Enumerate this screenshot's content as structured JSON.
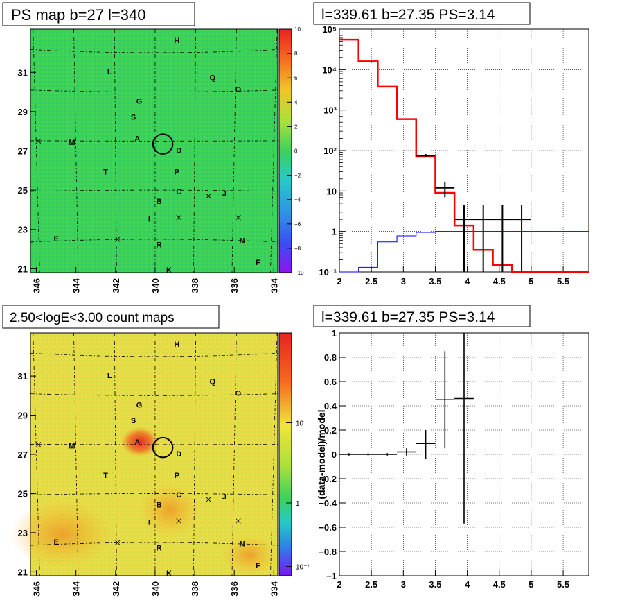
{
  "panels": {
    "tl": {
      "title": "PS map b=27 l=340"
    },
    "tr": {
      "title": "l=339.61 b=27.35 PS=3.14"
    },
    "bl": {
      "title": "2.50<logE<3.00 count maps"
    },
    "br": {
      "title": "l=339.61 b=27.35 PS=3.14"
    }
  },
  "colors": {
    "model_red": "#ff0000",
    "bkg_blue": "#0000ff",
    "data_black": "#000000",
    "ps_map_bg": "#3cd25a",
    "count_map_bg": "#e8e44a",
    "hotspot_red": "#e8281e"
  },
  "sky_map": {
    "l_ticks": [
      "346",
      "344",
      "342",
      "340",
      "338",
      "336",
      "334"
    ],
    "b_ticks": [
      "31",
      "29",
      "27",
      "25",
      "23",
      "21"
    ],
    "sources": [
      {
        "label": "H",
        "l": 338.9,
        "b": 32.6
      },
      {
        "label": "L",
        "l": 342.3,
        "b": 31.0
      },
      {
        "label": "Q",
        "l": 337.1,
        "b": 30.7
      },
      {
        "label": "O",
        "l": 335.8,
        "b": 30.1
      },
      {
        "label": "G",
        "l": 340.8,
        "b": 29.5
      },
      {
        "label": "S",
        "l": 341.1,
        "b": 28.7
      },
      {
        "label": "A",
        "l": 340.9,
        "b": 27.6
      },
      {
        "label": "M",
        "l": 344.2,
        "b": 27.4
      },
      {
        "label": "D",
        "l": 338.8,
        "b": 27.0
      },
      {
        "label": "T",
        "l": 342.5,
        "b": 25.9
      },
      {
        "label": "P",
        "l": 338.9,
        "b": 25.9
      },
      {
        "label": "C",
        "l": 338.8,
        "b": 24.9
      },
      {
        "label": "J",
        "l": 336.5,
        "b": 24.8
      },
      {
        "label": "B",
        "l": 339.8,
        "b": 24.4
      },
      {
        "label": "I",
        "l": 340.3,
        "b": 23.5
      },
      {
        "label": "E",
        "l": 345.0,
        "b": 22.5
      },
      {
        "label": "R",
        "l": 339.8,
        "b": 22.2
      },
      {
        "label": "N",
        "l": 335.6,
        "b": 22.4
      },
      {
        "label": "F",
        "l": 334.8,
        "b": 21.3
      },
      {
        "label": "K",
        "l": 339.3,
        "b": 20.9
      }
    ],
    "crosses": [
      {
        "l": 345.9,
        "b": 27.5
      },
      {
        "l": 337.3,
        "b": 24.7
      },
      {
        "l": 335.8,
        "b": 23.6
      },
      {
        "l": 338.8,
        "b": 23.6
      },
      {
        "l": 341.9,
        "b": 22.5
      }
    ],
    "circle": {
      "l": 339.61,
      "b": 27.35,
      "r_deg": 0.5
    }
  },
  "ps_colorbar": {
    "ticks": [
      "10",
      "8",
      "6",
      "4",
      "2",
      "0",
      "−2",
      "−4",
      "−6",
      "−8",
      "−10"
    ]
  },
  "count_colorbar": {
    "ticks": [
      "10",
      "1",
      "10⁻¹"
    ]
  },
  "chart_data": [
    {
      "type": "line",
      "title": "l=339.61 b=27.35 PS=3.14",
      "x_ticks": [
        "2",
        "2.5",
        "3",
        "3.5",
        "4",
        "4.5",
        "5",
        "5.5"
      ],
      "y_ticks": [
        "10⁻¹",
        "1",
        "10",
        "10²",
        "10³",
        "10⁴",
        "10⁵"
      ],
      "xlim": [
        2.0,
        5.9
      ],
      "ylim": [
        0.1,
        100000
      ],
      "yscale": "log",
      "grid": true,
      "series": [
        {
          "step_edges": [
            2.0,
            2.3,
            2.6,
            2.9,
            3.2,
            3.5,
            3.8,
            4.1,
            4.4,
            4.7,
            5.0,
            5.9
          ],
          "values": [
            55000,
            16000,
            3800,
            600,
            70,
            9,
            1.4,
            0.35,
            0.15,
            0.1,
            0.1
          ],
          "color": "#ff0000"
        },
        {
          "step_edges": [
            2.0,
            2.3,
            2.6,
            2.9,
            3.2,
            3.5,
            3.8,
            5.9
          ],
          "values": [
            0.1,
            0.13,
            0.55,
            0.78,
            0.95,
            1.0,
            1.0
          ],
          "color": "#0000ff"
        },
        {
          "type": "errorbar",
          "x": [
            3.35,
            3.65,
            3.95,
            4.25,
            4.55,
            4.85
          ],
          "xerr": [
            0.15,
            0.15,
            0.15,
            0.15,
            0.15,
            0.15
          ],
          "y": [
            75,
            12,
            2,
            2,
            2,
            2
          ],
          "ylo": [
            68,
            7,
            0.1,
            0.1,
            0.1,
            0.1
          ],
          "yhi": [
            82,
            17,
            4.5,
            4.5,
            4.5,
            4.5
          ],
          "color": "#000000"
        }
      ]
    },
    {
      "type": "scatter",
      "title": "l=339.61 b=27.35 PS=3.14",
      "ylabel": "(data-model)/model",
      "x_ticks": [
        "2",
        "2.5",
        "3",
        "3.5",
        "4",
        "4.5",
        "5",
        "5.5"
      ],
      "y_ticks": [
        "1",
        "0.8",
        "0.6",
        "0.4",
        "0.2",
        "0",
        "−0.2",
        "−0.4",
        "−0.6",
        "−0.8",
        "−1"
      ],
      "xlim": [
        2.0,
        5.9
      ],
      "ylim": [
        -1.0,
        1.0
      ],
      "grid": true,
      "series": [
        {
          "type": "errorbar",
          "x": [
            2.15,
            2.45,
            2.75,
            3.05,
            3.35,
            3.65,
            3.95
          ],
          "xerr": [
            0.15,
            0.15,
            0.15,
            0.15,
            0.15,
            0.15,
            0.15
          ],
          "y": [
            0.0,
            0.0,
            0.0,
            0.02,
            0.09,
            0.45,
            0.46
          ],
          "ylo": [
            -0.01,
            -0.01,
            -0.01,
            -0.01,
            -0.04,
            0.05,
            -0.57
          ],
          "yhi": [
            0.01,
            0.01,
            0.01,
            0.05,
            0.2,
            0.85,
            1.0
          ],
          "color": "#000000"
        }
      ]
    }
  ]
}
